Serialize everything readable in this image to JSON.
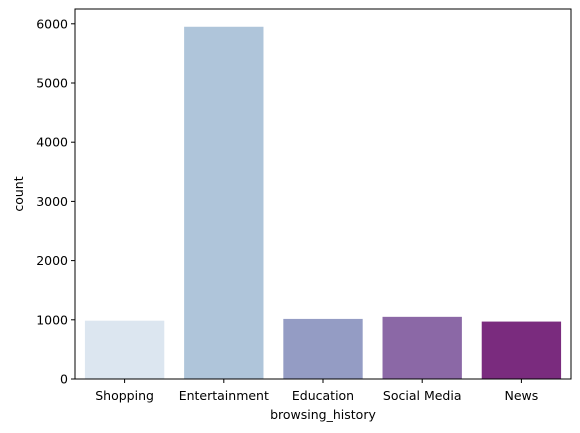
{
  "chart_data": {
    "type": "bar",
    "categories": [
      "Shopping",
      "Entertainment",
      "Education",
      "Social Media",
      "News"
    ],
    "values": [
      985,
      5950,
      1015,
      1050,
      970
    ],
    "colors": [
      "#dce6f0",
      "#afc5da",
      "#949cc4",
      "#8b68a6",
      "#7a2b7e"
    ],
    "xlabel": "browsing_history",
    "ylabel": "count",
    "ylim": [
      0,
      6250
    ],
    "yticks": [
      0,
      1000,
      2000,
      3000,
      4000,
      5000,
      6000
    ],
    "ytick_labels": [
      "0",
      "1000",
      "2000",
      "3000",
      "4000",
      "5000",
      "6000"
    ],
    "grid": false,
    "legend": "none"
  }
}
